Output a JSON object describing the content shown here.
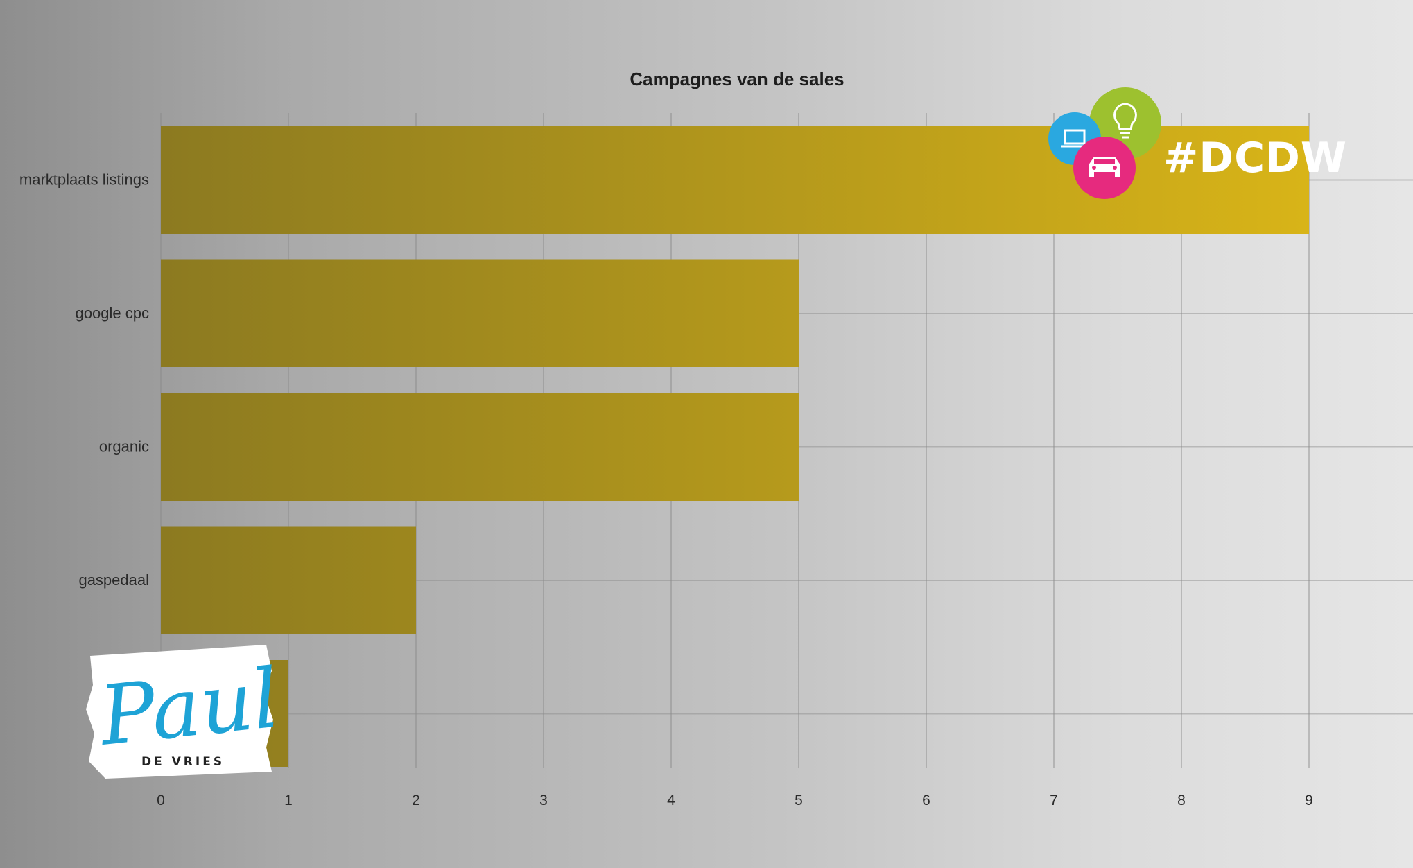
{
  "chart_data": {
    "type": "bar",
    "orientation": "horizontal",
    "title": "Campagnes van de sales",
    "categories": [
      "marktplaats listings",
      "google cpc",
      "organic",
      "gaspedaal",
      ""
    ],
    "values": [
      9,
      5,
      5,
      2,
      1
    ],
    "xlim": [
      0,
      9
    ],
    "xticks": [
      "0",
      "1",
      "2",
      "3",
      "4",
      "5",
      "6",
      "7",
      "8",
      "9"
    ],
    "grid": true,
    "colors": {
      "bar_start": "#8c7a20",
      "bar_end": "#d8b418"
    }
  },
  "branding": {
    "hashtag": "#DCDW",
    "signature_name": "Paul",
    "signature_sub": "DE VRIES",
    "icons": [
      "laptop-icon",
      "lightbulb-icon",
      "car-icon"
    ],
    "colors": {
      "blue": "#2aa8e0",
      "green": "#9dc12f",
      "pink": "#e62a7e"
    }
  }
}
